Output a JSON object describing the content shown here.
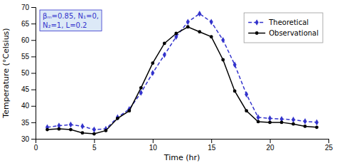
{
  "chart_data": {
    "type": "line",
    "x": [
      1,
      2,
      3,
      4,
      5,
      6,
      7,
      8,
      9,
      10,
      11,
      12,
      13,
      14,
      15,
      16,
      17,
      18,
      19,
      20,
      21,
      22,
      23,
      24
    ],
    "series": [
      {
        "name": "Theoretical",
        "color": "#3333cc",
        "marker": "diamond",
        "line_style": "dashed",
        "values": [
          33.5,
          34.0,
          34.3,
          33.8,
          32.8,
          33.0,
          36.5,
          39.0,
          44.0,
          50.0,
          55.5,
          61.0,
          65.5,
          68.0,
          65.5,
          60.0,
          52.5,
          43.5,
          36.5,
          36.2,
          36.0,
          35.8,
          35.3,
          35.0
        ]
      },
      {
        "name": "Observational",
        "color": "#000000",
        "marker": "circle",
        "line_style": "solid",
        "values": [
          32.8,
          33.0,
          32.8,
          31.8,
          31.5,
          32.5,
          36.2,
          38.5,
          45.5,
          53.0,
          59.0,
          62.0,
          64.0,
          62.5,
          61.0,
          54.0,
          44.5,
          38.5,
          35.2,
          35.0,
          35.0,
          34.5,
          33.8,
          33.5
        ]
      }
    ],
    "xlabel": "Time (hr)",
    "ylabel": "Temperature (°Celsius)",
    "xlim": [
      0,
      25
    ],
    "ylim": [
      30,
      70
    ],
    "xticks": [
      0,
      5,
      10,
      15,
      20,
      25
    ],
    "yticks": [
      30,
      35,
      40,
      45,
      50,
      55,
      60,
      65,
      70
    ],
    "annotation": "βₘ=0.85, N₁=0,\nN₂=1, L=0.2",
    "legend": "upper right",
    "grid": false
  }
}
